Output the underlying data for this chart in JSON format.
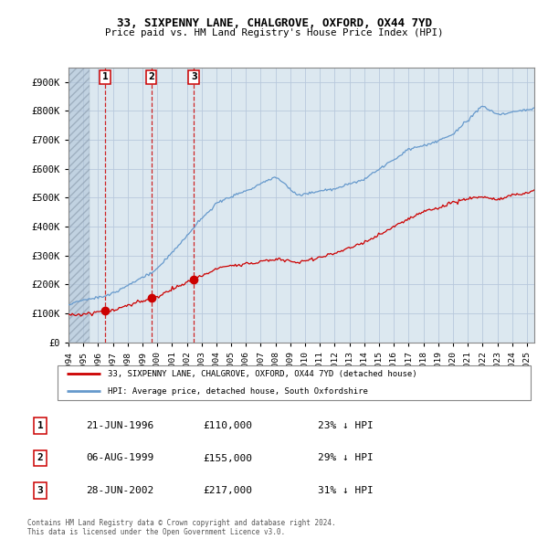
{
  "title": "33, SIXPENNY LANE, CHALGROVE, OXFORD, OX44 7YD",
  "subtitle": "Price paid vs. HM Land Registry's House Price Index (HPI)",
  "ylim": [
    0,
    950000
  ],
  "yticks": [
    0,
    100000,
    200000,
    300000,
    400000,
    500000,
    600000,
    700000,
    800000,
    900000
  ],
  "ytick_labels": [
    "£0",
    "£100K",
    "£200K",
    "£300K",
    "£400K",
    "£500K",
    "£600K",
    "£700K",
    "£800K",
    "£900K"
  ],
  "transactions": [
    {
      "date": 1996.47,
      "price": 110000,
      "label": "1"
    },
    {
      "date": 1999.59,
      "price": 155000,
      "label": "2"
    },
    {
      "date": 2002.48,
      "price": 217000,
      "label": "3"
    }
  ],
  "transaction_color": "#cc0000",
  "hpi_color": "#6699cc",
  "legend_house_label": "33, SIXPENNY LANE, CHALGROVE, OXFORD, OX44 7YD (detached house)",
  "legend_hpi_label": "HPI: Average price, detached house, South Oxfordshire",
  "table_rows": [
    [
      "1",
      "21-JUN-1996",
      "£110,000",
      "23% ↓ HPI"
    ],
    [
      "2",
      "06-AUG-1999",
      "£155,000",
      "29% ↓ HPI"
    ],
    [
      "3",
      "28-JUN-2002",
      "£217,000",
      "31% ↓ HPI"
    ]
  ],
  "footer": "Contains HM Land Registry data © Crown copyright and database right 2024.\nThis data is licensed under the Open Government Licence v3.0.",
  "grid_color": "#b8c8dc",
  "plot_bg_color": "#dce8f0",
  "xlim_start": 1994.0,
  "xlim_end": 2025.5,
  "hatch_end": 1995.4
}
